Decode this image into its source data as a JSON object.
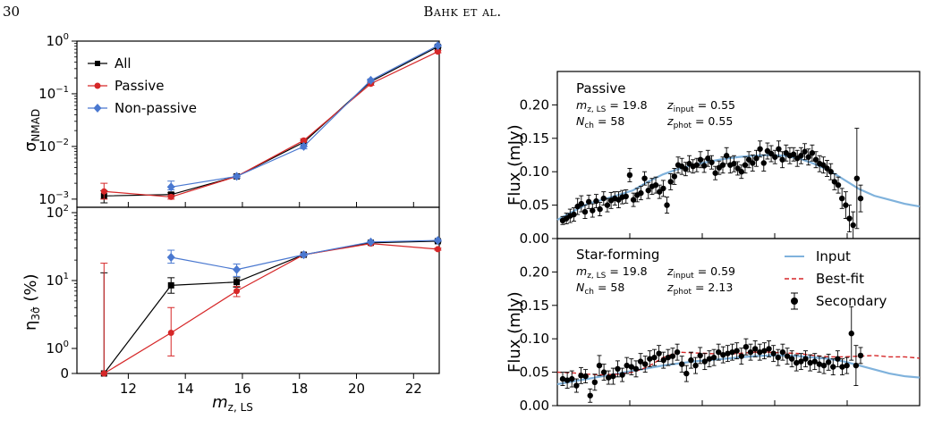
{
  "page": {
    "number": "30",
    "running_head": "Bahk et al."
  },
  "colors": {
    "all": "#000000",
    "passive": "#d62728",
    "nonpassive": "#4a78d0",
    "input": "#7fb2dc",
    "bestfit": "#d62728",
    "secondary": "#000000"
  },
  "chart_data": [
    {
      "type": "line",
      "panel": "left-top",
      "ylabel": "σ_NMAD",
      "yscale": "log",
      "ylim": [
        0.0007,
        1.0
      ],
      "xlim": [
        10.2,
        22.9
      ],
      "yticks": [
        "10^-3",
        "10^-2",
        "10^-1",
        "10^0"
      ],
      "legend": {
        "placement": "top-left",
        "entries": [
          "All",
          "Passive",
          "Non-passive"
        ]
      },
      "series": [
        {
          "name": "All",
          "color": "#000000",
          "marker": "square",
          "x": [
            11.15,
            13.5,
            15.8,
            18.15,
            20.5,
            22.85
          ],
          "y": [
            0.00115,
            0.00122,
            0.0027,
            0.012,
            0.17,
            0.78
          ],
          "yerr_lo": [
            0.0003,
            0.0001,
            0.0002,
            0.001,
            0.01,
            0.03
          ],
          "yerr_hi": [
            0.0003,
            0.0001,
            0.0002,
            0.001,
            0.01,
            0.03
          ]
        },
        {
          "name": "Passive",
          "color": "#d62728",
          "marker": "circle",
          "x": [
            11.15,
            13.5,
            15.8,
            18.15,
            20.5,
            22.85
          ],
          "y": [
            0.0014,
            0.0011,
            0.0027,
            0.013,
            0.155,
            0.63
          ],
          "yerr_lo": [
            0.0004,
            0.0001,
            0.0002,
            0.001,
            0.01,
            0.03
          ],
          "yerr_hi": [
            0.0006,
            0.0001,
            0.0002,
            0.001,
            0.01,
            0.03
          ]
        },
        {
          "name": "Non-passive",
          "color": "#4a78d0",
          "marker": "diamond",
          "x": [
            13.5,
            15.8,
            18.15,
            20.5,
            22.85
          ],
          "y": [
            0.0017,
            0.0027,
            0.01,
            0.18,
            0.82
          ],
          "yerr_lo": [
            0.0002,
            0.0002,
            0.001,
            0.01,
            0.03
          ],
          "yerr_hi": [
            0.0005,
            0.0002,
            0.001,
            0.01,
            0.03
          ]
        }
      ]
    },
    {
      "type": "line",
      "panel": "left-bottom",
      "xlabel": "m_z, LS",
      "ylabel": "η_3σ̂ (%)",
      "yscale": "symlog",
      "ylim": [
        0,
        100
      ],
      "xlim": [
        10.2,
        22.9
      ],
      "xticks": [
        "12",
        "14",
        "16",
        "18",
        "20",
        "22"
      ],
      "yticks": [
        "0",
        "10^0",
        "10^1",
        "10^2"
      ],
      "series": [
        {
          "name": "All",
          "color": "#000000",
          "marker": "square",
          "x": [
            11.15,
            13.5,
            15.8,
            18.15,
            20.5,
            22.85
          ],
          "y": [
            0,
            8.5,
            9.5,
            24,
            36,
            38
          ],
          "yerr_lo": [
            0,
            2.0,
            1.5,
            1,
            1,
            1
          ],
          "yerr_hi": [
            13,
            2.5,
            1.5,
            1,
            1,
            1
          ]
        },
        {
          "name": "Passive",
          "color": "#d62728",
          "marker": "circle",
          "x": [
            11.15,
            13.5,
            15.8,
            18.15,
            20.5,
            22.85
          ],
          "y": [
            0,
            1.7,
            7.0,
            24,
            35,
            29
          ],
          "yerr_lo": [
            0,
            1.0,
            1.2,
            1,
            1,
            1
          ],
          "yerr_hi": [
            18,
            2.3,
            1.2,
            1,
            1,
            1
          ]
        },
        {
          "name": "Non-passive",
          "color": "#4a78d0",
          "marker": "diamond",
          "x": [
            13.5,
            15.8,
            18.15,
            20.5,
            22.85
          ],
          "y": [
            22,
            14.5,
            24,
            37,
            39
          ],
          "yerr_lo": [
            4,
            3,
            1,
            1,
            1
          ],
          "yerr_hi": [
            6,
            3,
            1,
            1,
            1
          ]
        }
      ]
    },
    {
      "type": "scatter",
      "panel": "right-top",
      "title": "Passive",
      "ylabel": "Flux (mJy)",
      "ylim": [
        0.0,
        0.25
      ],
      "yticks": [
        "0.00",
        "0.05",
        "0.10",
        "0.15",
        "0.20"
      ],
      "annotations": {
        "mag": "19.8",
        "nch": "58",
        "z_input": "0.55",
        "z_phot": "0.55"
      },
      "secondary": {
        "y": [
          0.027,
          0.03,
          0.034,
          0.036,
          0.048,
          0.052,
          0.04,
          0.055,
          0.042,
          0.056,
          0.044,
          0.06,
          0.05,
          0.057,
          0.06,
          0.058,
          0.062,
          0.063,
          0.095,
          0.058,
          0.065,
          0.068,
          0.09,
          0.072,
          0.078,
          0.08,
          0.07,
          0.075,
          0.05,
          0.085,
          0.093,
          0.11,
          0.108,
          0.104,
          0.112,
          0.108,
          0.11,
          0.118,
          0.109,
          0.12,
          0.114,
          0.098,
          0.106,
          0.11,
          0.124,
          0.11,
          0.112,
          0.105,
          0.1,
          0.11,
          0.118,
          0.113,
          0.12,
          0.134,
          0.113,
          0.131,
          0.127,
          0.122,
          0.134,
          0.118,
          0.128,
          0.124,
          0.126,
          0.12,
          0.124,
          0.13,
          0.122,
          0.128,
          0.118,
          0.112,
          0.11,
          0.105,
          0.1,
          0.085,
          0.08,
          0.06,
          0.05,
          0.03,
          0.02,
          0.09,
          0.06
        ],
        "err": [
          0.006,
          0.008,
          0.01,
          0.01,
          0.012,
          0.012,
          0.01,
          0.01,
          0.01,
          0.01,
          0.01,
          0.01,
          0.01,
          0.012,
          0.01,
          0.012,
          0.01,
          0.01,
          0.01,
          0.01,
          0.01,
          0.01,
          0.01,
          0.012,
          0.012,
          0.012,
          0.01,
          0.012,
          0.012,
          0.012,
          0.012,
          0.012,
          0.012,
          0.01,
          0.012,
          0.01,
          0.01,
          0.012,
          0.01,
          0.012,
          0.01,
          0.01,
          0.01,
          0.012,
          0.012,
          0.012,
          0.012,
          0.01,
          0.01,
          0.012,
          0.012,
          0.012,
          0.012,
          0.012,
          0.012,
          0.012,
          0.012,
          0.01,
          0.012,
          0.012,
          0.012,
          0.012,
          0.01,
          0.012,
          0.012,
          0.012,
          0.012,
          0.012,
          0.012,
          0.012,
          0.012,
          0.012,
          0.012,
          0.012,
          0.012,
          0.015,
          0.02,
          0.02,
          0.02,
          0.075,
          0.02
        ]
      },
      "input_curve": [
        0.028,
        0.04,
        0.052,
        0.058,
        0.065,
        0.072,
        0.085,
        0.096,
        0.104,
        0.11,
        0.115,
        0.119,
        0.122,
        0.124,
        0.125,
        0.124,
        0.12,
        0.112,
        0.102,
        0.088,
        0.074,
        0.064,
        0.058,
        0.052,
        0.048
      ]
    },
    {
      "type": "scatter",
      "panel": "right-bottom",
      "title": "Star-forming",
      "ylabel": "Flux (mJy)",
      "ylim": [
        0.0,
        0.25
      ],
      "yticks": [
        "0.00",
        "0.05",
        "0.10",
        "0.15",
        "0.20"
      ],
      "annotations": {
        "mag": "19.8",
        "nch": "58",
        "z_input": "0.59",
        "z_phot": "2.13"
      },
      "legend": {
        "placement": "top-right",
        "entries": [
          "Input",
          "Best-fit",
          "Secondary"
        ]
      },
      "secondary": {
        "y": [
          0.04,
          0.038,
          0.04,
          0.03,
          0.045,
          0.044,
          0.015,
          0.035,
          0.06,
          0.05,
          0.042,
          0.044,
          0.055,
          0.046,
          0.06,
          0.058,
          0.055,
          0.066,
          0.062,
          0.07,
          0.072,
          0.078,
          0.068,
          0.072,
          0.074,
          0.08,
          0.062,
          0.048,
          0.068,
          0.06,
          0.075,
          0.066,
          0.07,
          0.072,
          0.08,
          0.076,
          0.078,
          0.08,
          0.082,
          0.074,
          0.088,
          0.08,
          0.085,
          0.08,
          0.082,
          0.085,
          0.078,
          0.072,
          0.08,
          0.074,
          0.07,
          0.064,
          0.066,
          0.07,
          0.064,
          0.066,
          0.062,
          0.06,
          0.065,
          0.058,
          0.07,
          0.058,
          0.06,
          0.108,
          0.06,
          0.075
        ],
        "err": [
          0.01,
          0.012,
          0.012,
          0.01,
          0.012,
          0.01,
          0.01,
          0.012,
          0.015,
          0.012,
          0.01,
          0.012,
          0.012,
          0.01,
          0.012,
          0.012,
          0.012,
          0.012,
          0.012,
          0.012,
          0.012,
          0.012,
          0.012,
          0.012,
          0.012,
          0.012,
          0.012,
          0.012,
          0.012,
          0.012,
          0.012,
          0.012,
          0.012,
          0.012,
          0.012,
          0.012,
          0.012,
          0.012,
          0.012,
          0.012,
          0.012,
          0.012,
          0.012,
          0.012,
          0.012,
          0.012,
          0.012,
          0.012,
          0.012,
          0.012,
          0.012,
          0.012,
          0.012,
          0.012,
          0.012,
          0.012,
          0.012,
          0.012,
          0.012,
          0.012,
          0.012,
          0.012,
          0.012,
          0.04,
          0.03,
          0.012
        ]
      },
      "input_curve": [
        0.032,
        0.036,
        0.04,
        0.044,
        0.048,
        0.052,
        0.056,
        0.06,
        0.063,
        0.066,
        0.068,
        0.07,
        0.072,
        0.074,
        0.075,
        0.075,
        0.074,
        0.072,
        0.07,
        0.066,
        0.06,
        0.054,
        0.048,
        0.044,
        0.042
      ],
      "bestfit_curve": [
        0.05,
        0.049,
        0.047,
        0.046,
        0.047,
        0.05,
        0.058,
        0.072,
        0.08,
        0.079,
        0.078,
        0.077,
        0.078,
        0.08,
        0.08,
        0.079,
        0.078,
        0.075,
        0.073,
        0.073,
        0.074,
        0.075,
        0.073,
        0.073,
        0.071
      ]
    }
  ]
}
